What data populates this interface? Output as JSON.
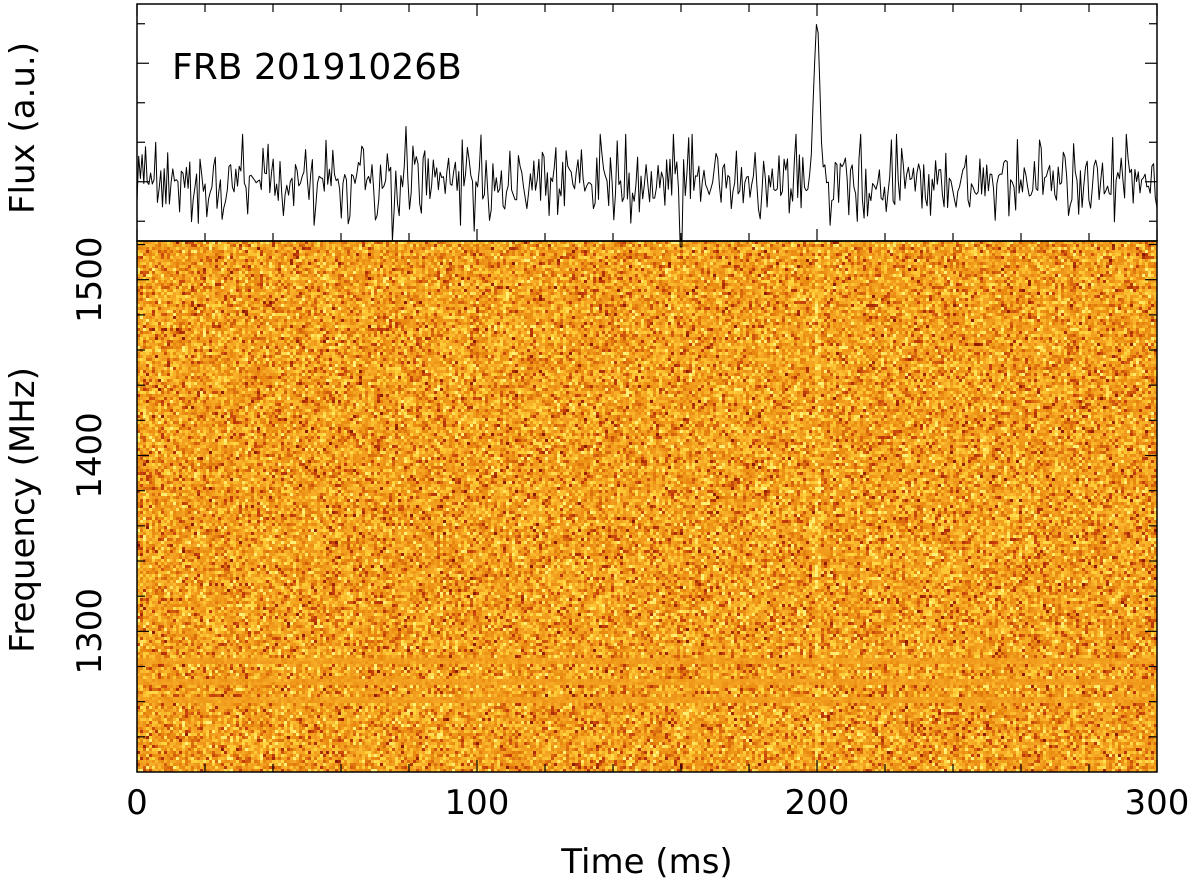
{
  "chart_data": {
    "type": "heatmap",
    "title": "FRB 20191026B",
    "top_panel": {
      "type": "line",
      "ylabel": "Flux (a.u.)",
      "x_range_ms": [
        0,
        300
      ],
      "y_range": [
        -3,
        9
      ],
      "baseline": 0,
      "noise_sigma": 1,
      "peak": {
        "time_ms": 200,
        "value": 8.1,
        "width_ms": 1.8
      },
      "notable_dips": [
        {
          "time_ms": 75,
          "value": -3
        },
        {
          "time_ms": 99,
          "value": -2.5
        },
        {
          "time_ms": 160,
          "value": -3.3
        }
      ],
      "notable_spikes": [
        {
          "time_ms": 79,
          "value": 2.8
        }
      ],
      "color": "#000000"
    },
    "bottom_panel": {
      "type": "heatmap",
      "xlabel": "Time (ms)",
      "ylabel": "Frequency (MHz)",
      "xlim": [
        0,
        300
      ],
      "ylim": [
        1220,
        1522
      ],
      "x_ticks": [
        0,
        100,
        200,
        300
      ],
      "y_ticks": [
        1300,
        1400,
        1500
      ],
      "colormap": [
        "#8b1a00",
        "#c23b0a",
        "#e8870f",
        "#f5a623",
        "#ffd23a",
        "#fff27a"
      ],
      "burst_time_ms": 200,
      "rfi_bands_mhz": [
        1272,
        1284,
        1262
      ]
    },
    "grid": false,
    "legend": "none"
  }
}
